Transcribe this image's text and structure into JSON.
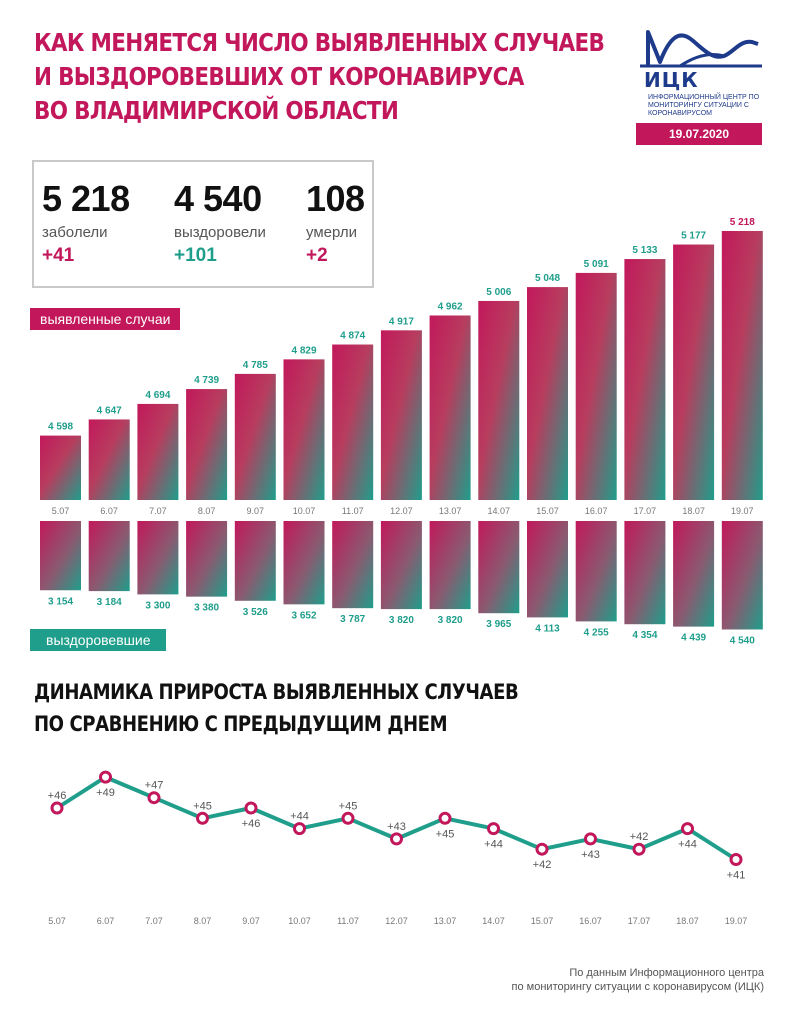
{
  "header": {
    "title_lines": [
      "КАК МЕНЯЕТСЯ ЧИСЛО ВЫЯВЛЕННЫХ СЛУЧАЕВ",
      "И ВЫЗДОРОВЕВШИХ ОТ КОРОНАВИРУСА",
      "ВО ВЛАДИМИРСКОЙ ОБЛАСТИ"
    ],
    "logo_name": "ИЦК",
    "logo_sub": "ИНФОРМАЦИОННЫЙ ЦЕНТР ПО МОНИТОРИНГУ СИТУАЦИИ С КОРОНАВИРУСОМ",
    "date": "19.07.2020"
  },
  "stats": [
    {
      "value": "5 218",
      "label": "заболели",
      "delta": "+41"
    },
    {
      "value": "4 540",
      "label": "выздоровели",
      "delta": "+101"
    },
    {
      "value": "108",
      "label": "умерли",
      "delta": "+2"
    }
  ],
  "badges": {
    "cases": "выявленные случаи",
    "recovered": "выздоровевшие"
  },
  "section2_lines": [
    "ДИНАМИКА ПРИРОСТА ВЫЯВЛЕННЫХ СЛУЧАЕВ",
    "ПО СРАВНЕНИЮ С ПРЕДЫДУЩИМ ДНЕМ"
  ],
  "source_lines": [
    "По данным Информационного центра",
    "по мониторингу ситуации с коронавирусом (ИЦК)"
  ],
  "colors": {
    "pink": "#c2185b",
    "teal": "#1f9e8b"
  },
  "chart_data": [
    {
      "type": "bar",
      "categories": [
        "5.07",
        "6.07",
        "7.07",
        "8.07",
        "9.07",
        "10.07",
        "11.07",
        "12.07",
        "13.07",
        "14.07",
        "15.07",
        "16.07",
        "17.07",
        "18.07",
        "19.07"
      ],
      "series": [
        {
          "name": "выявленные случаи",
          "values": [
            4598,
            4647,
            4694,
            4739,
            4785,
            4829,
            4874,
            4917,
            4962,
            5006,
            5048,
            5091,
            5133,
            5177,
            5218
          ],
          "labels": [
            "4 598",
            "4 647",
            "4 694",
            "4 739",
            "4 785",
            "4 829",
            "4 874",
            "4 917",
            "4 962",
            "5 006",
            "5 048",
            "5 091",
            "5 133",
            "5 177",
            "5 218"
          ]
        },
        {
          "name": "выздоровевшие",
          "values": [
            3154,
            3184,
            3300,
            3380,
            3526,
            3652,
            3787,
            3820,
            3820,
            3965,
            4113,
            4255,
            4354,
            4439,
            4540
          ],
          "labels": [
            "3 154",
            "3 184",
            "3 300",
            "3 380",
            "3 526",
            "3 652",
            "3 787",
            "3 820",
            "3 820",
            "3 965",
            "4 113",
            "4 255",
            "4 354",
            "4 439",
            "4 540"
          ]
        }
      ]
    },
    {
      "type": "line",
      "title": "ДИНАМИКА ПРИРОСТА ВЫЯВЛЕННЫХ СЛУЧАЕВ ПО СРАВНЕНИЮ С ПРЕДЫДУЩИМ ДНЕМ",
      "categories": [
        "5.07",
        "6.07",
        "7.07",
        "8.07",
        "9.07",
        "10.07",
        "11.07",
        "12.07",
        "13.07",
        "14.07",
        "15.07",
        "16.07",
        "17.07",
        "18.07",
        "19.07"
      ],
      "values": [
        46,
        49,
        47,
        45,
        46,
        44,
        45,
        43,
        45,
        44,
        42,
        43,
        42,
        44,
        41
      ],
      "labels": [
        "+46",
        "+49",
        "+47",
        "+45",
        "+46",
        "+44",
        "+45",
        "+43",
        "+45",
        "+44",
        "+42",
        "+43",
        "+42",
        "+44",
        "+41"
      ]
    }
  ]
}
